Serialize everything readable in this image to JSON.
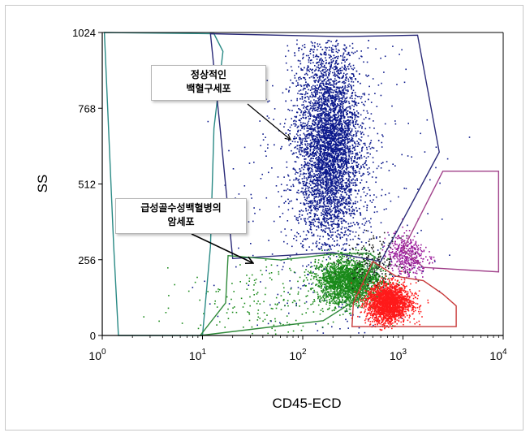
{
  "chart_data": {
    "type": "scatter",
    "title": "",
    "xlabel": "CD45-ECD",
    "ylabel": "SS",
    "x_scale": "log",
    "xlim": [
      1,
      10000
    ],
    "ylim": [
      0,
      1024
    ],
    "x_ticks": [
      {
        "value": 1,
        "base": "10",
        "exp": "0"
      },
      {
        "value": 10,
        "base": "10",
        "exp": "1"
      },
      {
        "value": 100,
        "base": "10",
        "exp": "2"
      },
      {
        "value": 1000,
        "base": "10",
        "exp": "3"
      },
      {
        "value": 10000,
        "base": "10",
        "exp": "4"
      }
    ],
    "y_ticks": [
      0,
      256,
      512,
      768,
      1024
    ],
    "gates": [
      {
        "name": "teal",
        "color": "#2a8a85",
        "points": [
          [
            1.05,
            1024
          ],
          [
            13,
            1020
          ],
          [
            16,
            960
          ],
          [
            13,
            700
          ],
          [
            12,
            300
          ],
          [
            10,
            0
          ],
          [
            1.45,
            0
          ],
          [
            1.3,
            300
          ],
          [
            1.05,
            1024
          ]
        ]
      },
      {
        "name": "navy",
        "color": "#2a2a78",
        "points": [
          [
            12,
            1020
          ],
          [
            250,
            1010
          ],
          [
            1400,
            1015
          ],
          [
            2300,
            620
          ],
          [
            600,
            250
          ],
          [
            200,
            280
          ],
          [
            20,
            260
          ],
          [
            15,
            700
          ],
          [
            12,
            1020
          ]
        ]
      },
      {
        "name": "purple",
        "color": "#a0408a",
        "points": [
          [
            2500,
            555
          ],
          [
            9000,
            555
          ],
          [
            9000,
            215
          ],
          [
            1600,
            230
          ],
          [
            1000,
            290
          ],
          [
            2500,
            555
          ]
        ]
      },
      {
        "name": "green",
        "color": "#2f8a3a",
        "points": [
          [
            18,
            270
          ],
          [
            60,
            255
          ],
          [
            200,
            275
          ],
          [
            450,
            278
          ],
          [
            530,
            265
          ],
          [
            380,
            130
          ],
          [
            160,
            50
          ],
          [
            9.5,
            0
          ],
          [
            17,
            110
          ],
          [
            18,
            270
          ]
        ]
      },
      {
        "name": "red",
        "color": "#c83838",
        "points": [
          [
            500,
            250
          ],
          [
            850,
            200
          ],
          [
            1600,
            185
          ],
          [
            2500,
            140
          ],
          [
            3400,
            100
          ],
          [
            3400,
            30
          ],
          [
            310,
            30
          ],
          [
            320,
            110
          ],
          [
            500,
            250
          ]
        ]
      }
    ],
    "populations": [
      {
        "name": "normal-leukocytes",
        "color": "#0d1a8c",
        "count": 5200,
        "log_x_center": 2.25,
        "log_x_sd": 0.16,
        "y_center": 650,
        "y_sd": 170,
        "y_range": [
          290,
          1000
        ]
      },
      {
        "name": "normal-leukocytes-spray",
        "color": "#0d1a8c",
        "count": 550,
        "log_x_center": 2.3,
        "log_x_sd": 0.45,
        "y_center": 450,
        "y_sd": 300,
        "y_range": [
          10,
          1010
        ]
      },
      {
        "name": "blasts",
        "color": "#1a8a1a",
        "count": 2300,
        "log_x_center": 2.45,
        "log_x_sd": 0.16,
        "y_center": 185,
        "y_sd": 38,
        "y_range": [
          70,
          300
        ]
      },
      {
        "name": "blasts-spray",
        "color": "#1a8a1a",
        "count": 180,
        "log_x_center": 1.6,
        "log_x_sd": 0.45,
        "y_center": 130,
        "y_sd": 70,
        "y_range": [
          0,
          270
        ]
      },
      {
        "name": "lymphocytes",
        "color": "#ff1a1a",
        "count": 2100,
        "log_x_center": 2.85,
        "log_x_sd": 0.11,
        "y_center": 110,
        "y_sd": 33,
        "y_range": [
          20,
          230
        ]
      },
      {
        "name": "monocytes",
        "color": "#9a1a9a",
        "count": 380,
        "log_x_center": 3.03,
        "log_x_sd": 0.1,
        "y_center": 270,
        "y_sd": 38,
        "y_range": [
          190,
          420
        ]
      },
      {
        "name": "debris",
        "color": "#202020",
        "count": 160,
        "log_x_center": 2.7,
        "log_x_sd": 0.14,
        "y_center": 255,
        "y_sd": 40,
        "y_range": [
          120,
          360
        ]
      }
    ],
    "annotations": [
      {
        "id": "normal",
        "lines": [
          "정상적인",
          "백혈구세포"
        ]
      },
      {
        "id": "aml",
        "lines": [
          "급성골수성백혈병의",
          "암세포"
        ]
      }
    ]
  }
}
